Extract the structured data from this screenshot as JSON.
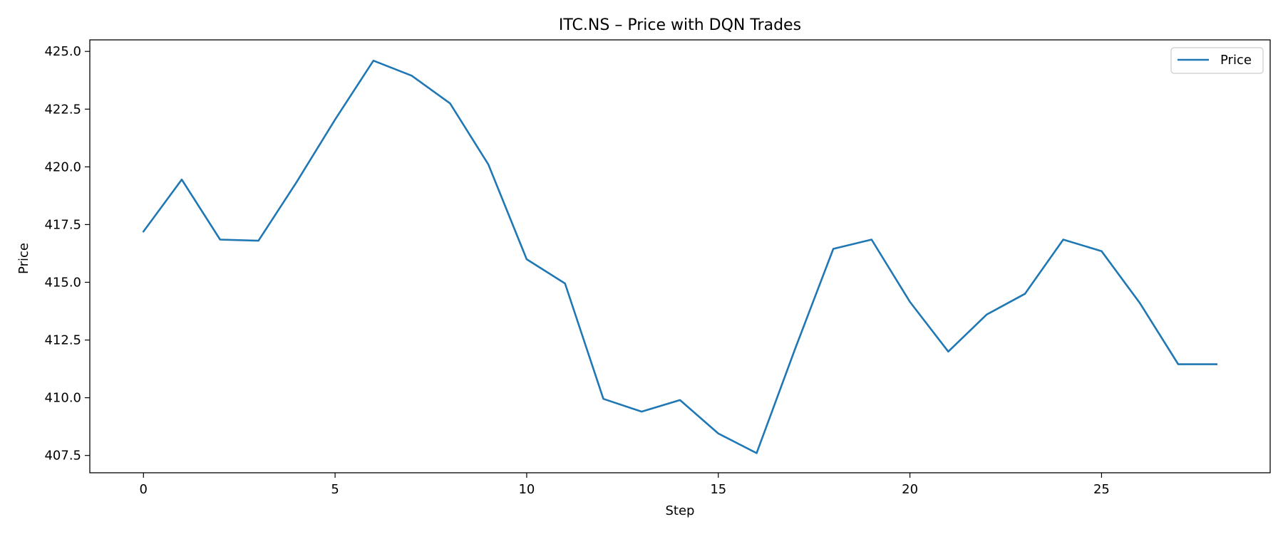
{
  "chart_data": {
    "type": "line",
    "title": "ITC.NS – Price with DQN Trades",
    "xlabel": "Step",
    "ylabel": "Price",
    "xlim": [
      -1.4,
      29.4
    ],
    "ylim": [
      406.75,
      425.5
    ],
    "xticks": [
      0,
      5,
      10,
      15,
      20,
      25
    ],
    "xtick_labels": [
      "0",
      "5",
      "10",
      "15",
      "20",
      "25"
    ],
    "yticks": [
      407.5,
      410.0,
      412.5,
      415.0,
      417.5,
      420.0,
      422.5,
      425.0
    ],
    "ytick_labels": [
      "407.5",
      "410.0",
      "412.5",
      "415.0",
      "417.5",
      "420.0",
      "422.5",
      "425.0"
    ],
    "grid": false,
    "legend_position": "top-right",
    "series": [
      {
        "name": "Price",
        "color": "#1f77b4",
        "x": [
          0,
          1,
          2,
          3,
          4,
          5,
          6,
          7,
          8,
          9,
          10,
          11,
          12,
          13,
          14,
          15,
          16,
          17,
          18,
          19,
          20,
          21,
          22,
          23,
          24,
          25,
          26,
          27,
          28
        ],
        "y": [
          417.2,
          419.45,
          416.85,
          416.8,
          419.35,
          422.05,
          424.6,
          423.95,
          422.75,
          420.1,
          416.0,
          414.95,
          409.95,
          409.4,
          409.9,
          408.45,
          407.6,
          412.1,
          416.45,
          416.85,
          414.15,
          412.0,
          413.6,
          414.5,
          416.85,
          416.35,
          414.1,
          411.45,
          411.45
        ]
      }
    ]
  }
}
